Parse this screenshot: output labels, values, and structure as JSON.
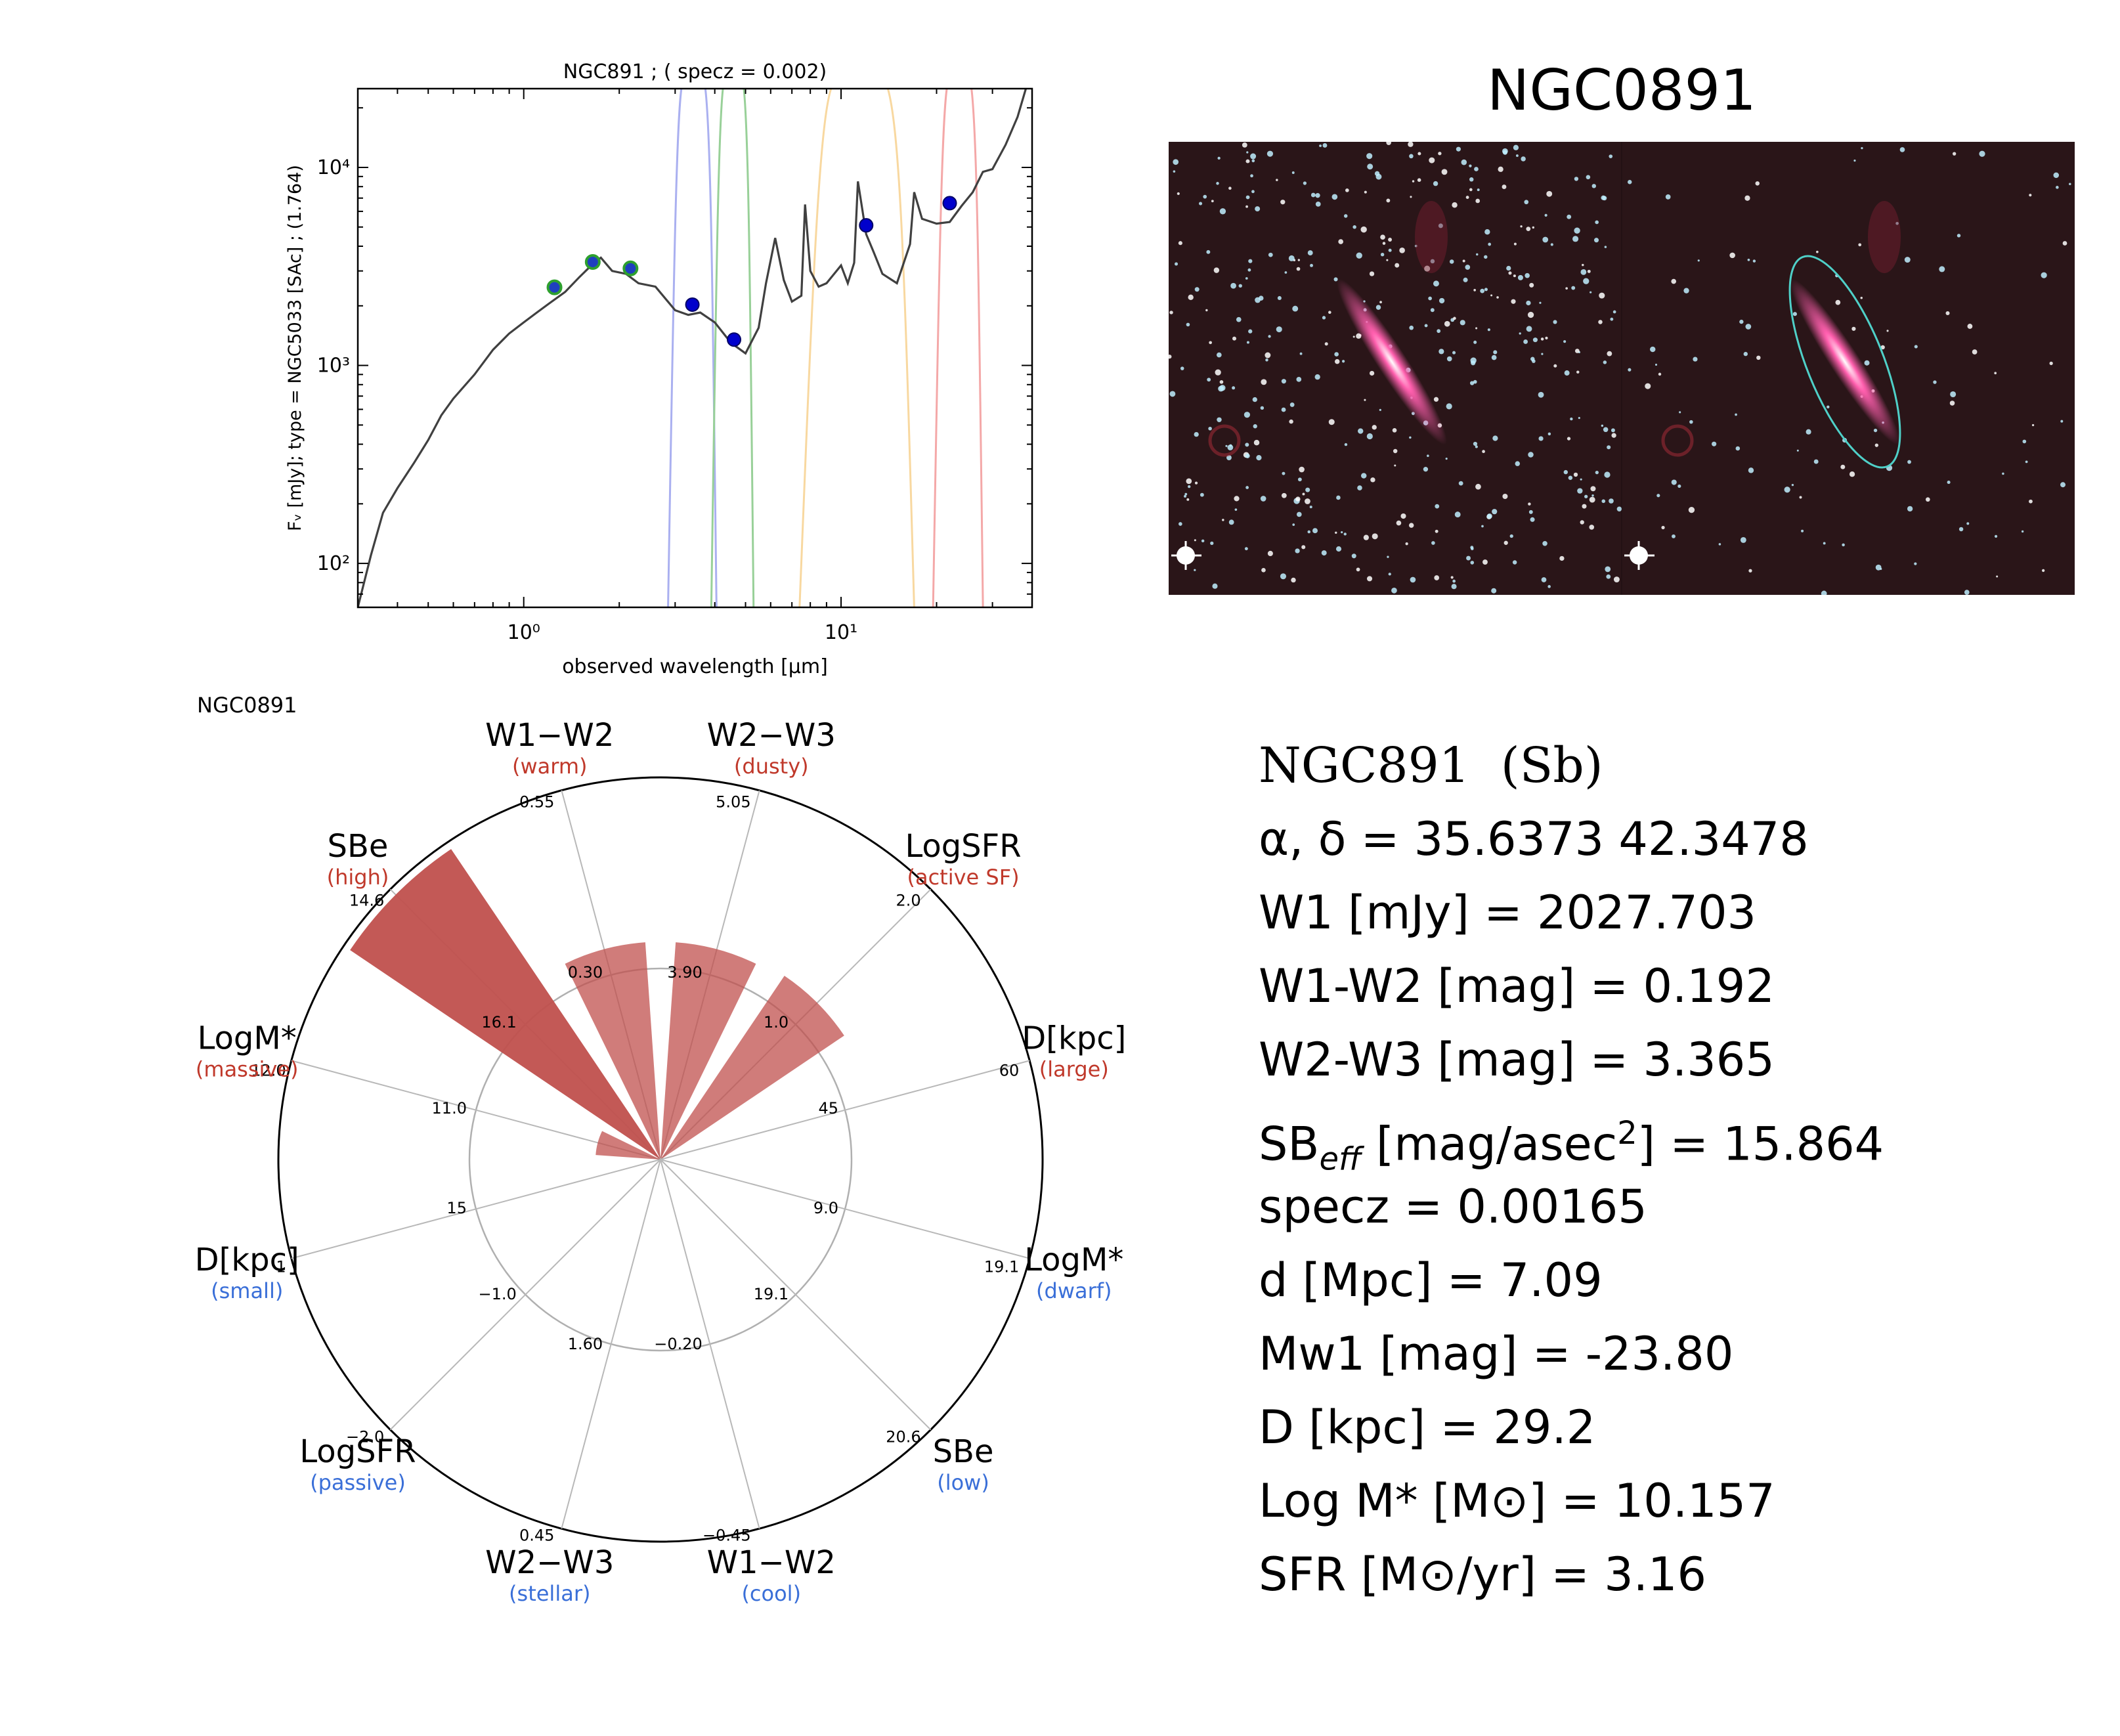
{
  "chart_data": [
    {
      "type": "line",
      "title": "NGC891 ; ( specz = 0.002)",
      "xlabel": "observed wavelength [μm]",
      "ylabel": "Fᵥ [mJy];  type = NGC5033 [SAc] ; (1.764)",
      "xscale": "log",
      "yscale": "log",
      "xlim": [
        0.3,
        40
      ],
      "ylim": [
        60,
        25000
      ],
      "xticks": [
        {
          "value": 1,
          "label": "10⁰"
        },
        {
          "value": 10,
          "label": "10¹"
        }
      ],
      "yticks": [
        {
          "value": 100,
          "label": "10²"
        },
        {
          "value": 1000,
          "label": "10³"
        },
        {
          "value": 10000,
          "label": "10⁴"
        }
      ],
      "series": [
        {
          "kind": "template",
          "color": "#404040",
          "x": [
            0.3,
            0.33,
            0.36,
            0.4,
            0.45,
            0.5,
            0.55,
            0.6,
            0.7,
            0.8,
            0.9,
            1.0,
            1.1,
            1.2,
            1.35,
            1.5,
            1.65,
            1.75,
            1.9,
            2.1,
            2.3,
            2.6,
            3.0,
            3.3,
            3.6,
            4.0,
            4.5,
            5.0,
            5.5,
            5.8,
            6.2,
            6.6,
            7.0,
            7.5,
            7.7,
            8.0,
            8.5,
            9.0,
            10.0,
            10.5,
            11.0,
            11.3,
            12.0,
            12.7,
            13.5,
            15.0,
            16.5,
            17.0,
            18.0,
            20.0,
            22.0,
            24.0,
            26.0,
            28.0,
            30.0,
            33.0,
            36.0,
            40.0
          ],
          "y": [
            60,
            110,
            180,
            240,
            320,
            420,
            560,
            680,
            900,
            1200,
            1450,
            1650,
            1850,
            2050,
            2350,
            2800,
            3250,
            3500,
            3000,
            2900,
            2600,
            2500,
            1900,
            1800,
            1850,
            1650,
            1300,
            1150,
            1550,
            2600,
            4400,
            2700,
            2100,
            2250,
            6500,
            3000,
            2500,
            2600,
            3200,
            2600,
            3300,
            8500,
            4600,
            3700,
            2900,
            2600,
            4100,
            7500,
            5500,
            5200,
            5300,
            6400,
            7500,
            9500,
            9800,
            13000,
            18000,
            32000
          ]
        },
        {
          "kind": "photometry-green-ring",
          "color": "#2ea02e",
          "x": [
            1.25,
            1.65,
            2.17
          ],
          "y": [
            2480,
            3330,
            3090
          ]
        },
        {
          "kind": "photometry-blue",
          "color": "#0000cc",
          "x": [
            3.4,
            4.6,
            12.0,
            22.0
          ],
          "y": [
            2028,
            1350,
            5100,
            6600
          ]
        }
      ],
      "filters": [
        {
          "color": "#aab0f0",
          "range": [
            2.85,
            4.05
          ]
        },
        {
          "color": "#98d098",
          "range": [
            3.9,
            5.3
          ]
        },
        {
          "color": "#f8d8a0",
          "range": [
            7.4,
            17.0
          ]
        },
        {
          "color": "#f4a8a8",
          "range": [
            19.5,
            28.0
          ]
        }
      ]
    },
    {
      "type": "radar",
      "title": "NGC0891",
      "bar_color": "#c0504d",
      "axes": [
        {
          "name": "W1−W2",
          "note": "(warm)",
          "tick_inner": "0.30",
          "tick_outer": "0.55",
          "value": 0.57
        },
        {
          "name": "W2−W3",
          "note": "(dusty)",
          "tick_inner": "3.90",
          "tick_outer": "5.05",
          "value": 0.57
        },
        {
          "name": "LogSFR",
          "note": "(active SF)",
          "tick_inner": "1.0",
          "tick_outer": "2.0",
          "value": 0.58
        },
        {
          "name": "D[kpc]",
          "note": "(large)",
          "tick_inner": "45",
          "tick_outer": "60",
          "value": 0.0
        },
        {
          "name": "LogM*",
          "note": "(dwarf)",
          "tick_inner": "9.0",
          "tick_outer": "19.1",
          "value": 0.0
        },
        {
          "name": "SBe",
          "note": "(low)",
          "tick_inner": "19.1",
          "tick_outer": "20.6",
          "value": 0.0
        },
        {
          "name": "W1−W2",
          "note": "(cool)",
          "tick_inner": "−0.20",
          "tick_outer": "−0.45",
          "value": 0.0
        },
        {
          "name": "W2−W3",
          "note": "(stellar)",
          "tick_inner": "1.60",
          "tick_outer": "0.45",
          "value": 0.0
        },
        {
          "name": "LogSFR",
          "note": "(passive)",
          "tick_inner": "−1.0",
          "tick_outer": "−2.0",
          "value": 0.0
        },
        {
          "name": "D[kpc]",
          "note": "(small)",
          "tick_inner": "15",
          "tick_outer": "1",
          "value": 0.0
        },
        {
          "name": "LogM*",
          "note": "(massive)",
          "tick_inner": "11.0",
          "tick_outer": "12.0",
          "value": 0.17
        },
        {
          "name": "SBe",
          "note": "(high)",
          "tick_inner": "16.1",
          "tick_outer": "14.6",
          "value": 0.98
        }
      ]
    }
  ],
  "image": {
    "title": "NGC0891",
    "background": "#2a1518",
    "ellipse_color": "#4fd0c8",
    "galaxy_color": "#ff5fae"
  },
  "info": {
    "name": "NGC891",
    "morph": "(Sb)",
    "lines": [
      {
        "key": "coords",
        "label": "α, δ = 35.6373 42.3478"
      },
      {
        "key": "w1",
        "label": "W1 [mJy] = 2027.703"
      },
      {
        "key": "w1w2",
        "label": "W1-W2 [mag] = 0.192"
      },
      {
        "key": "w2w3",
        "label": "W2-W3 [mag] = 3.365"
      },
      {
        "key": "sbeff",
        "label": "SB",
        "sub": "eff",
        "label2": " [mag/asec",
        "sup": "2",
        "label3": "] = 15.864"
      },
      {
        "key": "specz",
        "label": "specz = 0.00165"
      },
      {
        "key": "dist",
        "label": "d [Mpc] = 7.09"
      },
      {
        "key": "mw1",
        "label": "Mw1 [mag] = -23.80"
      },
      {
        "key": "diam",
        "label": "D [kpc] = 29.2"
      },
      {
        "key": "logm",
        "label": "Log M* [M⊙] = 10.157"
      },
      {
        "key": "sfr",
        "label": "SFR [M⊙/yr] = 3.16"
      }
    ]
  }
}
